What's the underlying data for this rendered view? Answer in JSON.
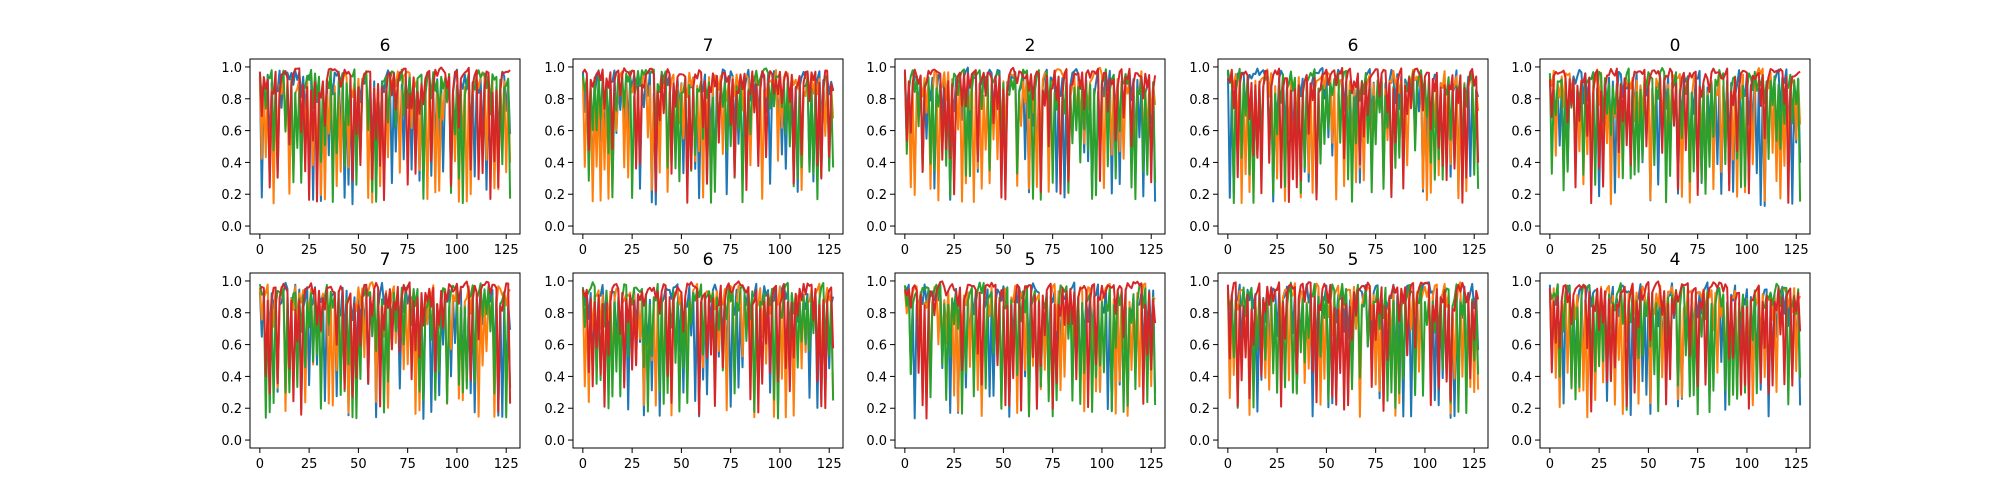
{
  "chart_data": {
    "type": "line",
    "layout": {
      "rows": 2,
      "cols": 5
    },
    "x_range": [
      0,
      127
    ],
    "xlim": [
      -5,
      132
    ],
    "ylim": [
      -0.05,
      1.05
    ],
    "xticks": [
      0,
      25,
      50,
      75,
      100,
      125
    ],
    "yticks": [
      0.0,
      0.2,
      0.4,
      0.6,
      0.8,
      1.0
    ],
    "xtick_labels": [
      "0",
      "25",
      "50",
      "75",
      "100",
      "125"
    ],
    "ytick_labels": [
      "0.0",
      "0.2",
      "0.4",
      "0.6",
      "0.8",
      "1.0"
    ],
    "series_colors": [
      "#1f77b4",
      "#ff7f0e",
      "#2ca02c",
      "#d62728"
    ],
    "grid": false,
    "legend": "none",
    "panels": [
      {
        "title": "6",
        "seed": 11
      },
      {
        "title": "7",
        "seed": 23
      },
      {
        "title": "2",
        "seed": 37
      },
      {
        "title": "6",
        "seed": 41
      },
      {
        "title": "0",
        "seed": 53
      },
      {
        "title": "7",
        "seed": 67
      },
      {
        "title": "6",
        "seed": 79
      },
      {
        "title": "5",
        "seed": 83
      },
      {
        "title": "5",
        "seed": 97
      },
      {
        "title": "4",
        "seed": 101
      }
    ]
  }
}
